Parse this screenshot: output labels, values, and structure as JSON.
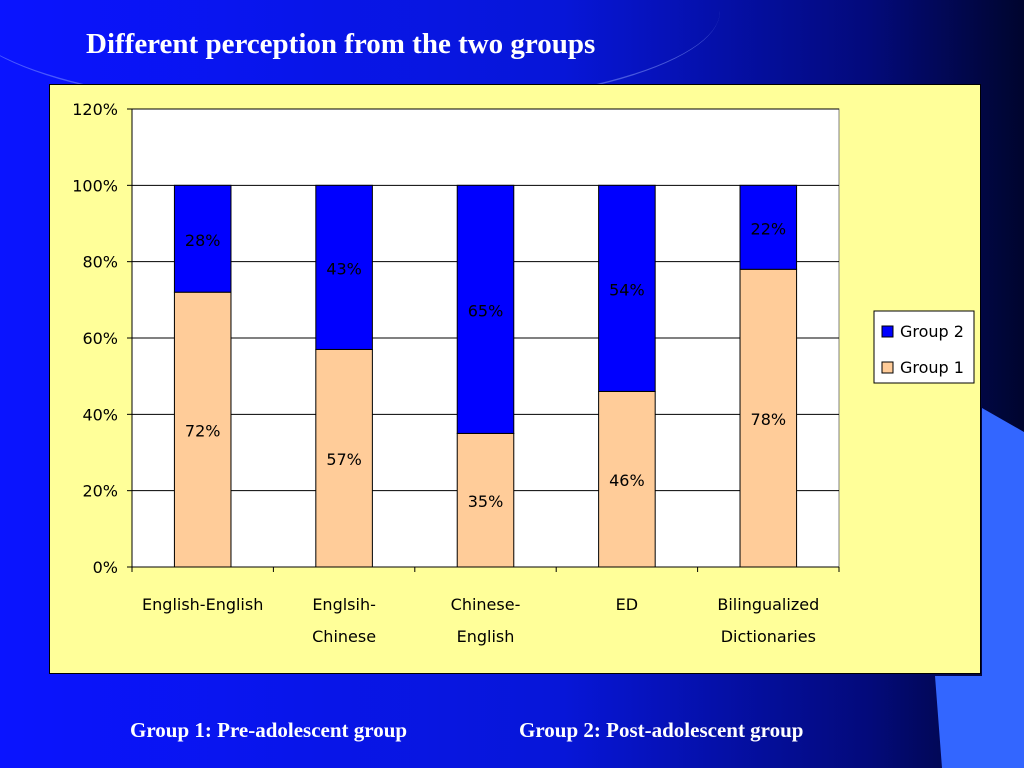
{
  "title": "Different perception from the two groups",
  "footnotes": [
    "Group 1: Pre-adolescent group",
    "Group 2: Post-adolescent group"
  ],
  "colors": {
    "group1": "#ffcc99",
    "group2": "#0000ff",
    "panel": "#ffff99"
  },
  "chart_data": {
    "type": "bar",
    "stacked": true,
    "categories": [
      [
        "English-English"
      ],
      [
        "Englsih-",
        "Chinese"
      ],
      [
        "Chinese-",
        "English"
      ],
      [
        "ED"
      ],
      [
        "Bilingualized",
        "Dictionaries"
      ]
    ],
    "series": [
      {
        "name": "Group 1",
        "values": [
          72,
          57,
          35,
          46,
          78
        ],
        "labels": [
          "72%",
          "57%",
          "35%",
          "46%",
          "78%"
        ],
        "color": "#ffcc99"
      },
      {
        "name": "Group 2",
        "values": [
          28,
          43,
          65,
          54,
          22
        ],
        "labels": [
          "28%",
          "43%",
          "65%",
          "54%",
          "22%"
        ],
        "color": "#0000ff"
      }
    ],
    "ylim": [
      0,
      120
    ],
    "yticks": [
      "0%",
      "20%",
      "40%",
      "60%",
      "80%",
      "100%",
      "120%"
    ],
    "legend": {
      "entries": [
        "Group 2",
        "Group 1"
      ],
      "placement": "right"
    },
    "grid": true
  }
}
